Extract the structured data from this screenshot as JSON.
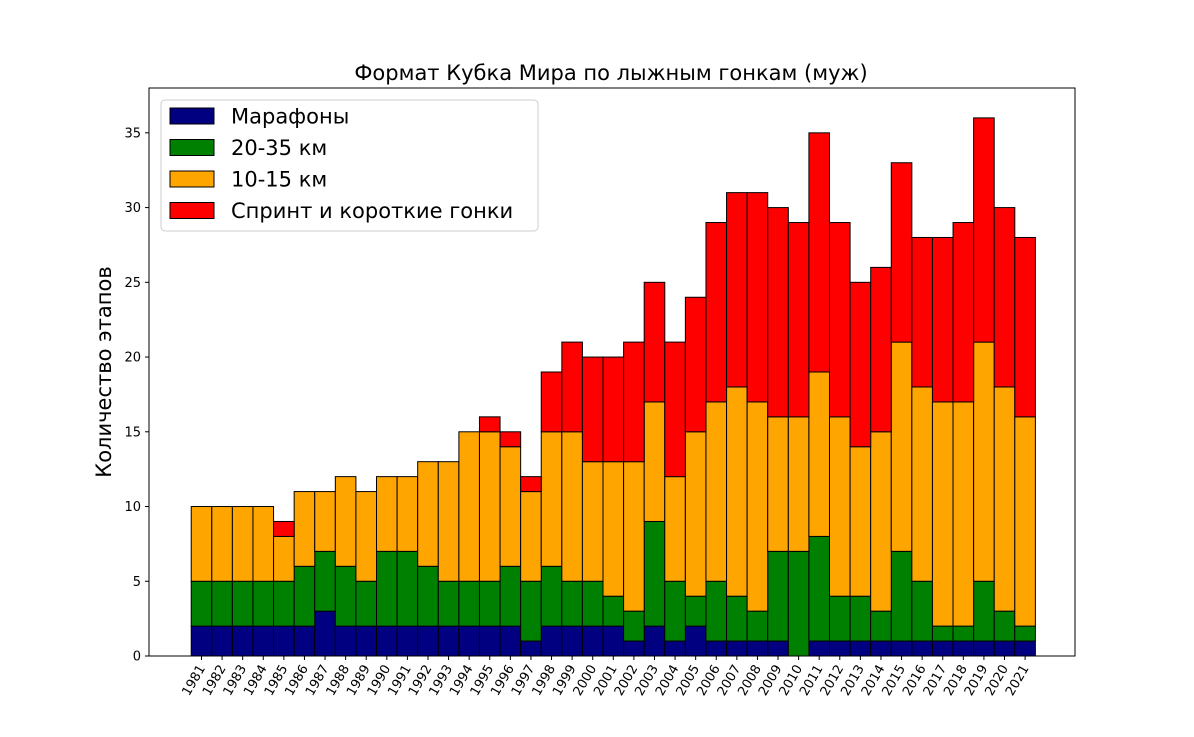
{
  "chart_data": {
    "type": "bar",
    "stacked": true,
    "title": "Формат Кубка Мира по лыжным гонкам (муж)",
    "xlabel": "",
    "ylabel": "Количество этапов",
    "ylim": [
      0,
      38
    ],
    "yticks": [
      0,
      5,
      10,
      15,
      20,
      25,
      30,
      35
    ],
    "grid": false,
    "legend_position": "top-left",
    "categories": [
      "1981",
      "1982",
      "1983",
      "1984",
      "1985",
      "1986",
      "1987",
      "1988",
      "1989",
      "1990",
      "1991",
      "1992",
      "1993",
      "1994",
      "1995",
      "1996",
      "1997",
      "1998",
      "1999",
      "2000",
      "2001",
      "2002",
      "2003",
      "2004",
      "2005",
      "2006",
      "2007",
      "2008",
      "2009",
      "2010",
      "2011",
      "2012",
      "2013",
      "2014",
      "2015",
      "2016",
      "2017",
      "2018",
      "2019",
      "2020",
      "2021"
    ],
    "series": [
      {
        "name": "Марафоны",
        "color": "#000080",
        "values": [
          2,
          2,
          2,
          2,
          2,
          2,
          3,
          2,
          2,
          2,
          2,
          2,
          2,
          2,
          2,
          2,
          1,
          2,
          2,
          2,
          2,
          1,
          2,
          1,
          2,
          1,
          1,
          1,
          1,
          0,
          1,
          1,
          1,
          1,
          1,
          1,
          1,
          1,
          1,
          1,
          1
        ]
      },
      {
        "name": "20-35 км",
        "color": "#008000",
        "values": [
          3,
          3,
          3,
          3,
          3,
          4,
          4,
          4,
          3,
          5,
          5,
          4,
          3,
          3,
          3,
          4,
          4,
          4,
          3,
          3,
          2,
          2,
          7,
          4,
          2,
          4,
          3,
          2,
          6,
          7,
          7,
          3,
          3,
          2,
          6,
          4,
          1,
          1,
          4,
          2,
          1
        ]
      },
      {
        "name": "10-15 км",
        "color": "#ffa500",
        "values": [
          5,
          5,
          5,
          5,
          3,
          5,
          4,
          6,
          6,
          5,
          5,
          7,
          8,
          10,
          10,
          8,
          6,
          9,
          10,
          8,
          9,
          10,
          8,
          7,
          11,
          12,
          14,
          14,
          9,
          9,
          11,
          12,
          10,
          12,
          14,
          13,
          15,
          15,
          16,
          15,
          14
        ]
      },
      {
        "name": "Спринт и короткие гонки",
        "color": "#ff0000",
        "values": [
          0,
          0,
          0,
          0,
          1,
          0,
          0,
          0,
          0,
          0,
          0,
          0,
          0,
          0,
          1,
          1,
          1,
          4,
          6,
          7,
          7,
          8,
          8,
          9,
          9,
          12,
          13,
          14,
          14,
          13,
          16,
          13,
          11,
          11,
          12,
          10,
          11,
          12,
          15,
          12,
          12
        ]
      }
    ]
  }
}
